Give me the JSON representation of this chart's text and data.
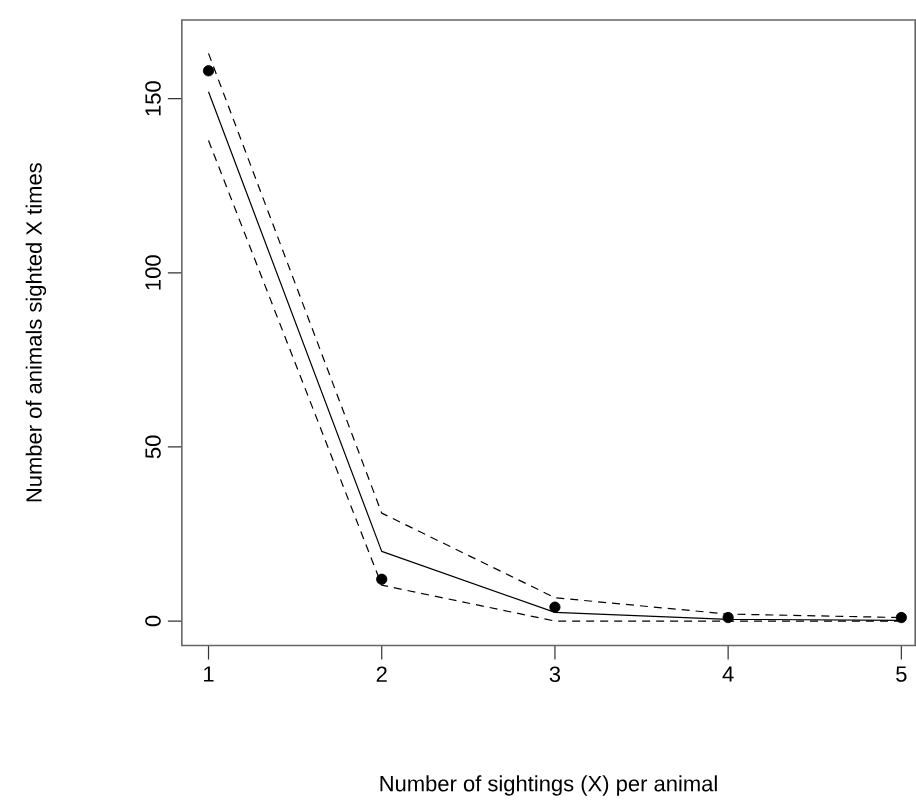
{
  "chart_data": {
    "type": "line",
    "xlabel": "Number of sightings (X) per animal",
    "ylabel": "Number of animals sighted X times",
    "x": [
      1,
      2,
      3,
      4,
      5
    ],
    "xlim": [
      0.846,
      5.08
    ],
    "ylim": [
      -7,
      172.6
    ],
    "xticks": [
      1,
      2,
      3,
      4,
      5
    ],
    "yticks": [
      0,
      50,
      100,
      150
    ],
    "grid": false,
    "series": [
      {
        "type": "scatter",
        "marker": "circle",
        "color": "#000000",
        "values": [
          158,
          12,
          4,
          1,
          1
        ]
      },
      {
        "line_style": "solid",
        "color": "#000000",
        "values": [
          152,
          20,
          2.5,
          0.5,
          0.2
        ]
      },
      {
        "line_style": "dashed",
        "color": "#000000",
        "values": [
          163,
          31,
          6.7,
          2,
          1
        ]
      },
      {
        "line_style": "dashed",
        "color": "#000000",
        "values": [
          138,
          10.3,
          0,
          0,
          0
        ]
      }
    ]
  }
}
